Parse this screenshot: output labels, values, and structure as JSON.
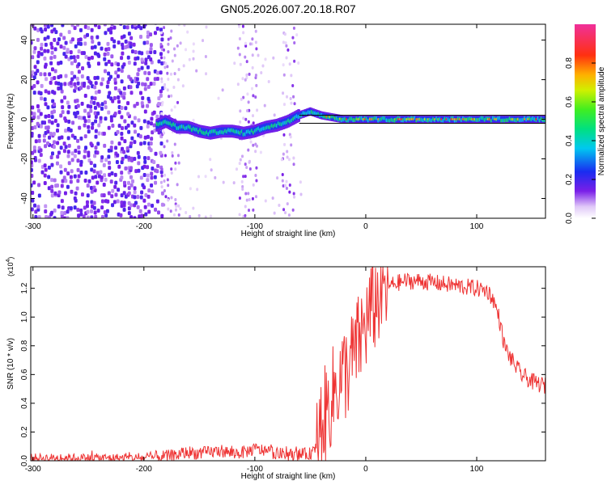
{
  "title": "GN05.2026.007.20.18.R07",
  "chart_data": [
    {
      "type": "heatmap",
      "xlabel": "Height of straight line (km)",
      "ylabel": "Frequency (Hz)",
      "xlim": [
        -302,
        162
      ],
      "ylim": [
        -50,
        48
      ],
      "xticks": [
        -300,
        -200,
        -100,
        0,
        100
      ],
      "yticks": [
        -40,
        -20,
        0,
        20,
        40
      ],
      "grid": false,
      "colorbar": {
        "label": "Normalized spectral amplitude",
        "range": [
          0,
          1
        ],
        "ticks": [
          "0.0",
          "0.2",
          "0.4",
          "0.6",
          "0.8"
        ],
        "colormap": "rainbow (white → purple → blue → cyan → green → yellow → red → magenta)"
      },
      "features": {
        "noise_region_x": [
          -302,
          -185
        ],
        "sparse_noise_bands_x": [
          [
            -185,
            -170
          ],
          [
            -115,
            -100
          ],
          [
            -75,
            -65
          ]
        ],
        "signal_start_x": -188,
        "signal_track": {
          "x": [
            -188,
            -180,
            -170,
            -160,
            -150,
            -140,
            -130,
            -120,
            -110,
            -100,
            -90,
            -80,
            -70,
            -60,
            -55,
            -50,
            -40,
            -30,
            -20,
            -10,
            0,
            20,
            40,
            60,
            80,
            100,
            120,
            140,
            162
          ],
          "y": [
            -3,
            -1,
            -4,
            -4,
            -6,
            -7,
            -6,
            -6,
            -7,
            -6,
            -4,
            -3,
            -1,
            2,
            3,
            4,
            2,
            1,
            0,
            0,
            0,
            0,
            0,
            0,
            0,
            0,
            0,
            0,
            0
          ]
        },
        "reference_band_hz": [
          -2,
          2
        ],
        "reference_band_x": [
          -60,
          162
        ]
      }
    },
    {
      "type": "line",
      "xlabel": "Height of straight line (km)",
      "ylabel": "SNR (10 * v/v)",
      "y_multiplier": "(x10",
      "y_multiplier_exp": "4",
      "xlim": [
        -302,
        162
      ],
      "ylim": [
        0,
        1.35
      ],
      "xticks": [
        -300,
        -200,
        -100,
        0,
        100
      ],
      "yticks": [
        "0.0",
        "0.2",
        "0.4",
        "0.6",
        "0.8",
        "1.0",
        "1.2"
      ],
      "grid": false,
      "color": "#ee3333",
      "series": [
        {
          "x": [
            -302,
            -290,
            -270,
            -250,
            -230,
            -210,
            -200,
            -190,
            -180,
            -170,
            -160,
            -150,
            -140,
            -130,
            -120,
            -110,
            -100,
            -90,
            -80,
            -70,
            -60,
            -50,
            -45,
            -40,
            -35,
            -30,
            -25,
            -20,
            -15,
            -10,
            -5,
            0,
            5,
            10,
            15,
            20,
            25,
            30,
            35,
            40,
            50,
            60,
            70,
            80,
            90,
            100,
            110,
            115,
            120,
            125,
            130,
            135,
            140,
            150,
            162
          ],
          "y": [
            0.02,
            0.02,
            0.02,
            0.02,
            0.02,
            0.02,
            0.02,
            0.025,
            0.03,
            0.04,
            0.06,
            0.05,
            0.06,
            0.07,
            0.05,
            0.06,
            0.08,
            0.07,
            0.05,
            0.04,
            0.04,
            0.05,
            0.1,
            0.25,
            0.35,
            0.45,
            0.55,
            0.6,
            0.65,
            0.75,
            0.85,
            0.95,
            1.05,
            1.12,
            1.18,
            1.21,
            1.23,
            1.24,
            1.25,
            1.25,
            1.25,
            1.24,
            1.23,
            1.22,
            1.21,
            1.2,
            1.18,
            1.12,
            1.0,
            0.8,
            0.72,
            0.66,
            0.6,
            0.55,
            0.52
          ]
        }
      ]
    }
  ]
}
